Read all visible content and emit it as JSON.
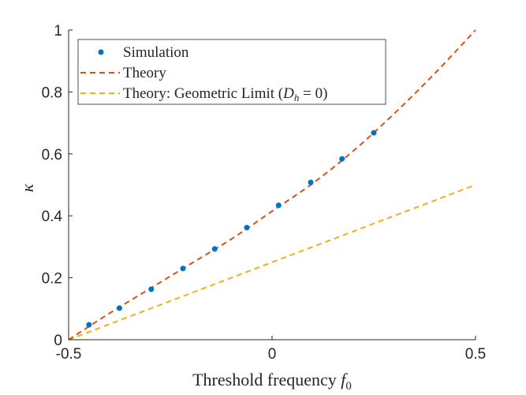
{
  "chart_data": {
    "type": "line",
    "title": "",
    "xlabel": "Threshold frequency f0",
    "xlabel_text": "Threshold frequency ",
    "xlabel_symbol": "f",
    "xlabel_sub": "0",
    "ylabel": "κ",
    "xlim": [
      -0.5,
      0.5
    ],
    "ylim": [
      0,
      1
    ],
    "xticks": [
      -0.5,
      0,
      0.5
    ],
    "xtick_labels": [
      "-0.5",
      "0",
      "0.5"
    ],
    "yticks": [
      0,
      0.2,
      0.4,
      0.6,
      0.8,
      1
    ],
    "ytick_labels": [
      "0",
      "0.2",
      "0.4",
      "0.6",
      "0.8",
      "1"
    ],
    "grid": false,
    "legend_position": "top-left",
    "series": [
      {
        "name": "Simulation",
        "style": "markers",
        "color": "#0072BD",
        "x": [
          -0.45,
          -0.375,
          -0.297,
          -0.219,
          -0.141,
          -0.062,
          0.016,
          0.095,
          0.172,
          0.25
        ],
        "y": [
          0.048,
          0.102,
          0.163,
          0.23,
          0.293,
          0.362,
          0.434,
          0.508,
          0.584,
          0.668
        ]
      },
      {
        "name": "Theory",
        "style": "dashed",
        "color": "#D95319",
        "x": [
          -0.5,
          -0.4,
          -0.3,
          -0.2,
          -0.1,
          0,
          0.1,
          0.2,
          0.3,
          0.4,
          0.5
        ],
        "y": [
          0,
          0.085,
          0.165,
          0.245,
          0.325,
          0.415,
          0.505,
          0.61,
          0.73,
          0.86,
          1.0
        ]
      },
      {
        "name": "Theory: Geometric Limit (D_h = 0)",
        "style": "dashed",
        "color": "#EDB120",
        "x": [
          -0.5,
          0.5
        ],
        "y": [
          0,
          0.5
        ]
      }
    ],
    "legend": {
      "entries": [
        "Simulation",
        "Theory",
        "Theory: Geometric Limit ("
      ],
      "math_D": "D",
      "math_sub": "h",
      "math_rest": " = 0)"
    }
  }
}
